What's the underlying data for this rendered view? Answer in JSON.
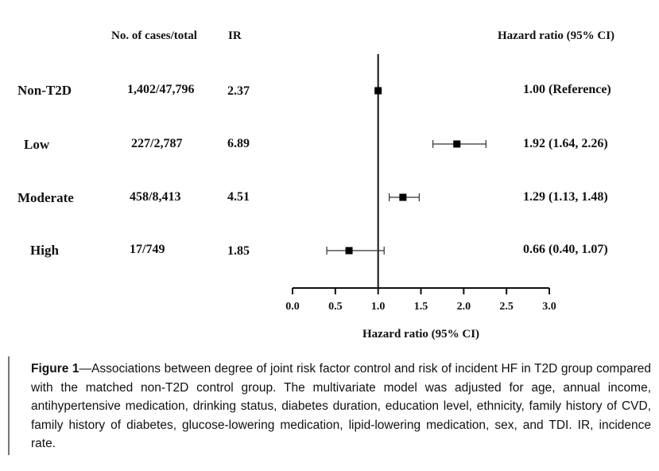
{
  "table": {
    "headers": {
      "cases": "No. of cases/total",
      "ir": "IR",
      "hr": "Hazard ratio (95% CI)"
    },
    "rows": [
      {
        "label": "Non-T2D",
        "cases": "1,402/47,796",
        "ir": "2.37",
        "hr_text": "1.00 (Reference)"
      },
      {
        "label": "Low",
        "cases": "227/2,787",
        "ir": "6.89",
        "hr_text": "1.92 (1.64, 2.26)"
      },
      {
        "label": "Moderate",
        "cases": "458/8,413",
        "ir": "4.51",
        "hr_text": "1.29 (1.13, 1.48)"
      },
      {
        "label": "High",
        "cases": "17/749",
        "ir": "1.85",
        "hr_text": "0.66 (0.40, 1.07)"
      }
    ]
  },
  "chart_data": {
    "type": "forest",
    "xlabel": "Hazard ratio (95% CI)",
    "xlim": [
      0.0,
      3.0
    ],
    "xticks": [
      "0.0",
      "0.5",
      "1.0",
      "1.5",
      "2.0",
      "2.5",
      "3.0"
    ],
    "reference_line": 1.0,
    "categories": [
      "Non-T2D",
      "Low",
      "Moderate",
      "High"
    ],
    "points": [
      {
        "label": "Non-T2D",
        "hr": 1.0,
        "lo": null,
        "hi": null
      },
      {
        "label": "Low",
        "hr": 1.92,
        "lo": 1.64,
        "hi": 2.26
      },
      {
        "label": "Moderate",
        "hr": 1.29,
        "lo": 1.13,
        "hi": 1.48
      },
      {
        "label": "High",
        "hr": 0.66,
        "lo": 0.4,
        "hi": 1.07
      }
    ]
  },
  "caption": {
    "figure_label": "Figure 1",
    "text": "—Associations between degree of joint risk factor control and risk of incident HF in T2D group compared with the matched non-T2D control group. The multivariate model was adjusted for age, annual income, antihypertensive medication, drinking status, diabetes duration, education level, ethnicity, family history of CVD, family history of diabetes, glucose-lowering medication, lipid-lowering medication, sex, and TDI. IR, incidence rate."
  }
}
